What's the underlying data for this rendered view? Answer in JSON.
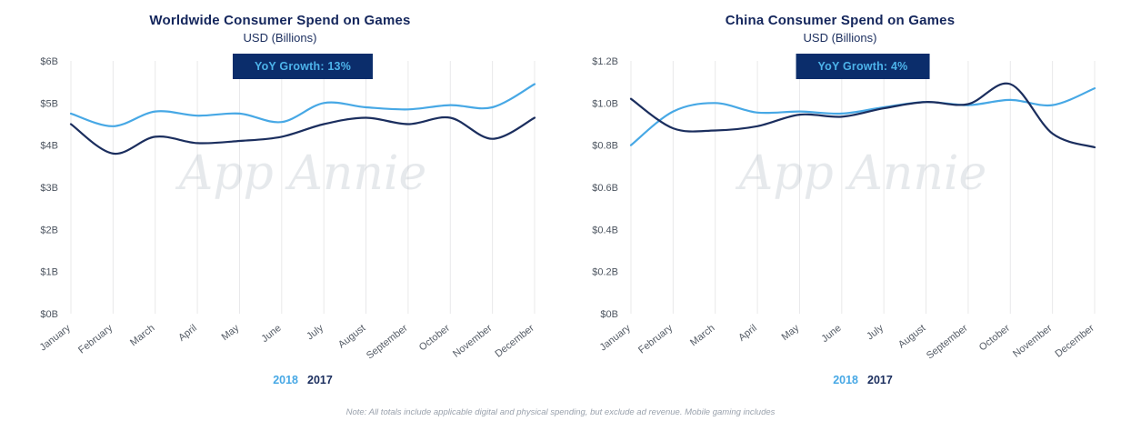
{
  "page": {
    "watermark": "App Annie",
    "note": "Note: All totals include applicable digital and physical spending, but exclude ad revenue. Mobile gaming includes"
  },
  "colors": {
    "navy": "#1b2e5e",
    "light_blue": "#47a8e5",
    "badge_bg": "#0b2d6b",
    "badge_text": "#4db3ea",
    "gridline": "#e8e8ea"
  },
  "chart_data": [
    {
      "type": "line",
      "title": "Worldwide Consumer Spend on Games",
      "subtitle": "USD (Billions)",
      "badge": "YoY Growth: 13%",
      "categories": [
        "January",
        "February",
        "March",
        "April",
        "May",
        "June",
        "July",
        "August",
        "September",
        "October",
        "November",
        "December"
      ],
      "ylim": [
        0,
        6
      ],
      "yticks": [
        0,
        1,
        2,
        3,
        4,
        5,
        6
      ],
      "ytick_labels": [
        "$0B",
        "$1B",
        "$2B",
        "$3B",
        "$4B",
        "$5B",
        "$6B"
      ],
      "grid": "vertical",
      "legend_position": "bottom",
      "series": [
        {
          "name": "2018",
          "color": "#47a8e5",
          "values": [
            4.75,
            4.45,
            4.8,
            4.7,
            4.75,
            4.55,
            5.0,
            4.9,
            4.85,
            4.95,
            4.9,
            5.45
          ]
        },
        {
          "name": "2017",
          "color": "#1b2e5e",
          "values": [
            4.5,
            3.8,
            4.2,
            4.05,
            4.1,
            4.2,
            4.5,
            4.65,
            4.5,
            4.65,
            4.15,
            4.65
          ]
        }
      ]
    },
    {
      "type": "line",
      "title": "China Consumer Spend on Games",
      "subtitle": "USD (Billions)",
      "badge": "YoY Growth: 4%",
      "categories": [
        "January",
        "February",
        "March",
        "April",
        "May",
        "June",
        "July",
        "August",
        "September",
        "October",
        "November",
        "December"
      ],
      "ylim": [
        0,
        1.2
      ],
      "yticks": [
        0,
        0.2,
        0.4,
        0.6,
        0.8,
        1.0,
        1.2
      ],
      "ytick_labels": [
        "$0B",
        "$0.2B",
        "$0.4B",
        "$0.6B",
        "$0.8B",
        "$1.0B",
        "$1.2B"
      ],
      "grid": "vertical",
      "legend_position": "bottom",
      "series": [
        {
          "name": "2018",
          "color": "#47a8e5",
          "values": [
            0.8,
            0.96,
            1.0,
            0.955,
            0.96,
            0.95,
            0.98,
            1.005,
            0.99,
            1.015,
            0.99,
            1.07
          ]
        },
        {
          "name": "2017",
          "color": "#1b2e5e",
          "values": [
            1.02,
            0.88,
            0.87,
            0.89,
            0.945,
            0.935,
            0.975,
            1.005,
            0.995,
            1.09,
            0.855,
            0.79
          ]
        }
      ]
    }
  ]
}
